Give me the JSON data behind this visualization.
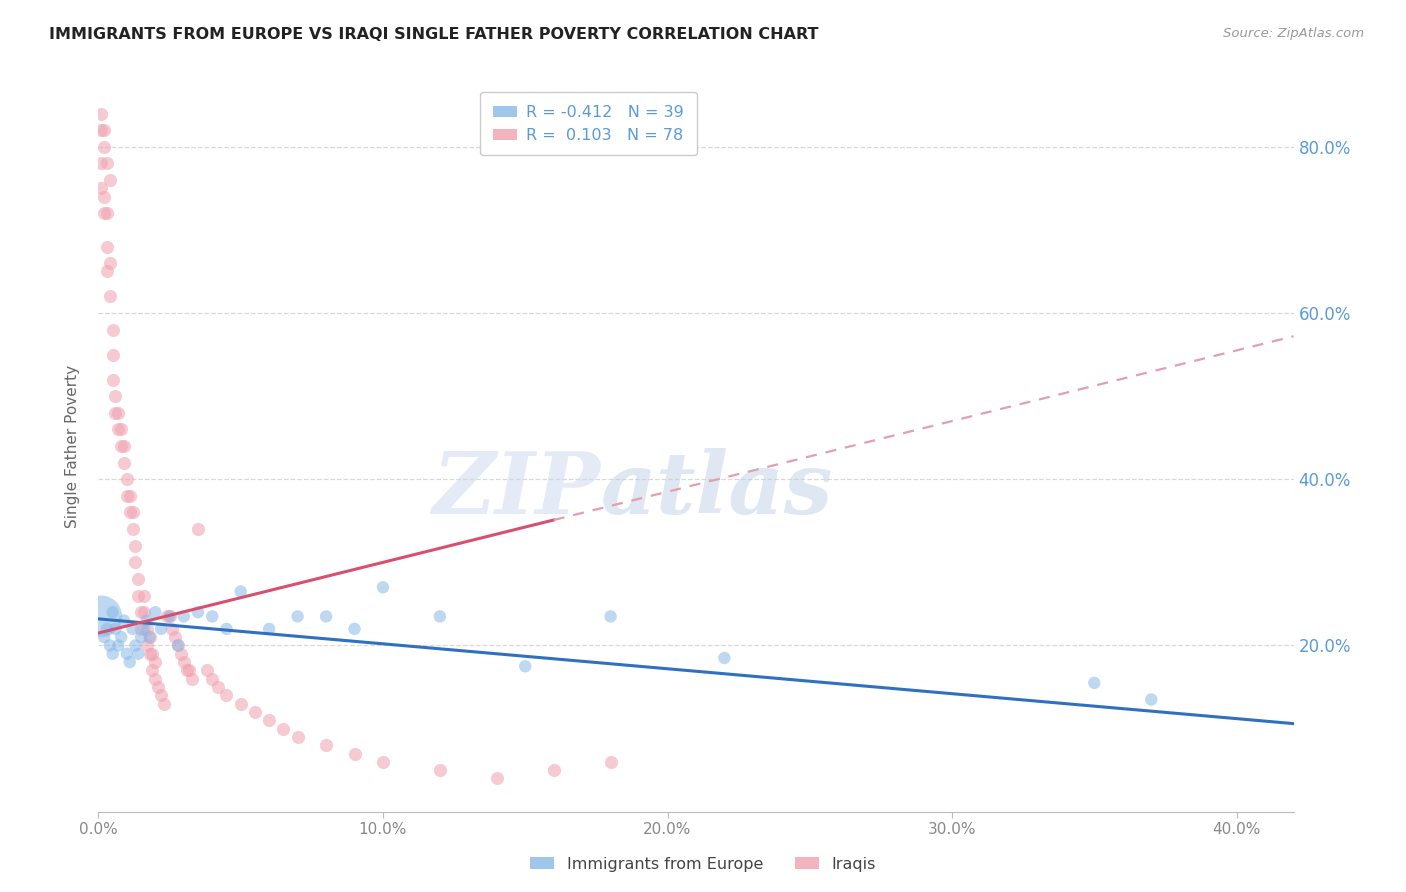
{
  "title": "IMMIGRANTS FROM EUROPE VS IRAQI SINGLE FATHER POVERTY CORRELATION CHART",
  "source": "Source: ZipAtlas.com",
  "ylabel": "Single Father Poverty",
  "xlim": [
    0.0,
    0.42
  ],
  "ylim": [
    0.0,
    0.88
  ],
  "xticks": [
    0.0,
    0.1,
    0.2,
    0.3,
    0.4
  ],
  "yticks": [
    0.2,
    0.4,
    0.6,
    0.8
  ],
  "ytick_labels": [
    "20.0%",
    "40.0%",
    "60.0%",
    "80.0%"
  ],
  "xtick_labels": [
    "0.0%",
    "10.0%",
    "20.0%",
    "30.0%",
    "40.0%"
  ],
  "watermark_zip": "ZIP",
  "watermark_atlas": "atlas",
  "legend_line1": "R = -0.412   N = 39",
  "legend_line2": "R =  0.103   N = 78",
  "blue_scatter_x": [
    0.001,
    0.002,
    0.003,
    0.004,
    0.005,
    0.005,
    0.006,
    0.007,
    0.008,
    0.009,
    0.01,
    0.011,
    0.012,
    0.013,
    0.014,
    0.015,
    0.016,
    0.017,
    0.018,
    0.02,
    0.022,
    0.025,
    0.028,
    0.03,
    0.035,
    0.04,
    0.045,
    0.05,
    0.06,
    0.07,
    0.08,
    0.09,
    0.1,
    0.12,
    0.15,
    0.18,
    0.22,
    0.35,
    0.37
  ],
  "blue_scatter_y": [
    0.235,
    0.21,
    0.22,
    0.2,
    0.19,
    0.24,
    0.22,
    0.2,
    0.21,
    0.23,
    0.19,
    0.18,
    0.22,
    0.2,
    0.19,
    0.21,
    0.22,
    0.23,
    0.21,
    0.24,
    0.22,
    0.235,
    0.2,
    0.235,
    0.24,
    0.235,
    0.22,
    0.265,
    0.22,
    0.235,
    0.235,
    0.22,
    0.27,
    0.235,
    0.175,
    0.235,
    0.185,
    0.155,
    0.135
  ],
  "blue_scatter_sizes": [
    900,
    80,
    80,
    80,
    80,
    80,
    80,
    80,
    80,
    80,
    80,
    80,
    80,
    80,
    80,
    80,
    80,
    80,
    80,
    80,
    80,
    80,
    80,
    80,
    80,
    80,
    80,
    80,
    80,
    80,
    80,
    80,
    80,
    80,
    80,
    80,
    80,
    80,
    80
  ],
  "pink_scatter_x": [
    0.001,
    0.001,
    0.002,
    0.002,
    0.003,
    0.003,
    0.003,
    0.004,
    0.004,
    0.005,
    0.005,
    0.005,
    0.006,
    0.006,
    0.007,
    0.007,
    0.008,
    0.008,
    0.009,
    0.009,
    0.01,
    0.01,
    0.011,
    0.011,
    0.012,
    0.012,
    0.013,
    0.013,
    0.014,
    0.014,
    0.015,
    0.015,
    0.016,
    0.016,
    0.017,
    0.017,
    0.018,
    0.018,
    0.019,
    0.019,
    0.02,
    0.02,
    0.021,
    0.022,
    0.023,
    0.024,
    0.025,
    0.026,
    0.027,
    0.028,
    0.029,
    0.03,
    0.031,
    0.032,
    0.033,
    0.035,
    0.038,
    0.04,
    0.042,
    0.045,
    0.05,
    0.055,
    0.06,
    0.065,
    0.07,
    0.08,
    0.09,
    0.1,
    0.12,
    0.14,
    0.16,
    0.18,
    0.001,
    0.001,
    0.002,
    0.002,
    0.003,
    0.004
  ],
  "pink_scatter_y": [
    0.75,
    0.78,
    0.72,
    0.74,
    0.68,
    0.72,
    0.65,
    0.62,
    0.66,
    0.55,
    0.58,
    0.52,
    0.5,
    0.48,
    0.46,
    0.48,
    0.44,
    0.46,
    0.42,
    0.44,
    0.38,
    0.4,
    0.36,
    0.38,
    0.34,
    0.36,
    0.3,
    0.32,
    0.28,
    0.26,
    0.24,
    0.22,
    0.26,
    0.24,
    0.22,
    0.2,
    0.19,
    0.21,
    0.19,
    0.17,
    0.18,
    0.16,
    0.15,
    0.14,
    0.13,
    0.235,
    0.235,
    0.22,
    0.21,
    0.2,
    0.19,
    0.18,
    0.17,
    0.17,
    0.16,
    0.34,
    0.17,
    0.16,
    0.15,
    0.14,
    0.13,
    0.12,
    0.11,
    0.1,
    0.09,
    0.08,
    0.07,
    0.06,
    0.05,
    0.04,
    0.05,
    0.06,
    0.82,
    0.84,
    0.8,
    0.82,
    0.78,
    0.76
  ],
  "blue_color": "#8ab8e8",
  "pink_color": "#f0a0b0",
  "blue_line_color": "#3070c0",
  "pink_line_color": "#d85070",
  "pink_dash_color": "#e0a0b0",
  "grid_color": "#d8d8d8",
  "title_color": "#222222",
  "axis_label_color": "#666666",
  "tick_color_right": "#5b9bd5",
  "tick_color_bottom": "#888888",
  "background_color": "#ffffff",
  "marker_alpha": 0.55,
  "line_width": 2.2,
  "blue_intercept": 0.232,
  "blue_slope": -0.3,
  "pink_intercept": 0.215,
  "pink_slope": 0.85
}
